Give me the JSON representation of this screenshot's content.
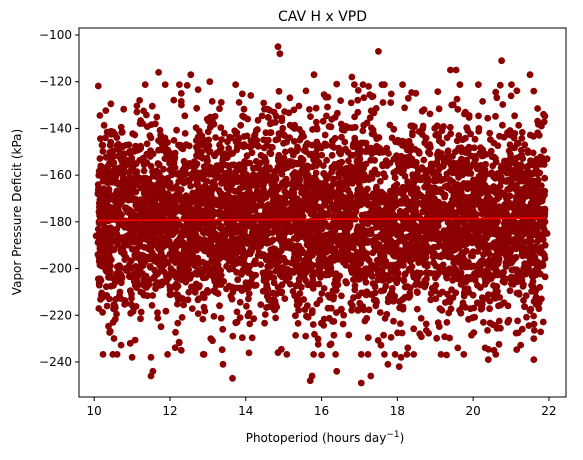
{
  "chart_data": {
    "type": "scatter",
    "title": "CAV H x VPD",
    "xlabel": "Photoperiod (hours day",
    "xlabel_superscript": "−1",
    "xlabel_suffix": ")",
    "ylabel": "Vapor Pressure Deficit (kPa)",
    "xlim": [
      9.6,
      22.45
    ],
    "ylim": [
      -255,
      -97
    ],
    "xticks": [
      10,
      12,
      14,
      16,
      18,
      20,
      22
    ],
    "xtick_labels": [
      "10",
      "12",
      "14",
      "16",
      "18",
      "20",
      "22"
    ],
    "yticks": [
      -240,
      -220,
      -200,
      -180,
      -160,
      -140,
      -120,
      -100
    ],
    "ytick_labels": [
      "−240",
      "−220",
      "−200",
      "−180",
      "−160",
      "−140",
      "−120",
      "−100"
    ],
    "grid": false,
    "series": [
      {
        "kind": "scatter",
        "color": "#8b0000",
        "x_range": [
          10.1,
          21.9
        ],
        "y_center": -179,
        "y_spread": 21,
        "points": [
          [
            14.85,
            -105
          ],
          [
            14.9,
            -108
          ],
          [
            17.5,
            -107
          ],
          [
            20.75,
            -111
          ],
          [
            19.4,
            -115
          ],
          [
            19.55,
            -115
          ],
          [
            11.7,
            -116
          ],
          [
            12.55,
            -117
          ],
          [
            15.8,
            -117
          ],
          [
            16.8,
            -118
          ],
          [
            21.5,
            -117
          ],
          [
            13.05,
            -120
          ],
          [
            12.3,
            -125
          ],
          [
            16.4,
            -121
          ],
          [
            21.6,
            -124
          ],
          [
            11.2,
            -128
          ],
          [
            10.3,
            -144
          ],
          [
            21.8,
            -139
          ],
          [
            21.95,
            -153
          ],
          [
            10.1,
            -168
          ],
          [
            10.2,
            -172
          ],
          [
            10.05,
            -186
          ],
          [
            21.95,
            -185
          ],
          [
            10.1,
            -194
          ],
          [
            10.25,
            -198
          ],
          [
            21.9,
            -190
          ],
          [
            10.4,
            -213
          ],
          [
            10.55,
            -216
          ],
          [
            10.5,
            -223
          ],
          [
            21.8,
            -213
          ],
          [
            21.5,
            -218
          ],
          [
            21.6,
            -230
          ],
          [
            10.95,
            -232
          ],
          [
            11.0,
            -238
          ],
          [
            11.5,
            -238
          ],
          [
            11.55,
            -244
          ],
          [
            11.5,
            -246
          ],
          [
            13.65,
            -247
          ],
          [
            15.7,
            -248
          ],
          [
            15.75,
            -246
          ],
          [
            16.4,
            -244
          ],
          [
            17.3,
            -246
          ],
          [
            17.05,
            -249
          ],
          [
            17.75,
            -241
          ],
          [
            18.05,
            -242
          ],
          [
            18.1,
            -238
          ],
          [
            19.3,
            -237
          ],
          [
            20.4,
            -239
          ],
          [
            20.55,
            -235
          ],
          [
            21.6,
            -239
          ],
          [
            13.4,
            -241
          ],
          [
            12.3,
            -235
          ],
          [
            14.85,
            -236
          ],
          [
            16.0,
            -237
          ]
        ]
      },
      {
        "kind": "trend-line",
        "color": "#ff0000",
        "x": [
          10.1,
          21.9
        ],
        "y": [
          -179.4,
          -178.4
        ]
      }
    ]
  }
}
